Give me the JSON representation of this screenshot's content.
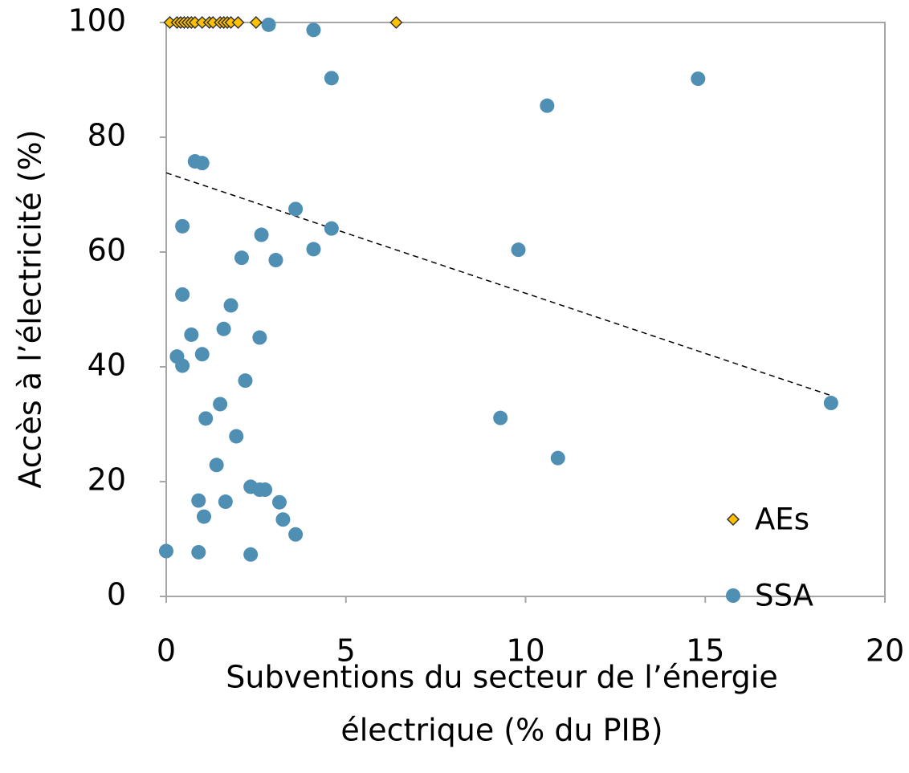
{
  "chart_data": {
    "type": "scatter",
    "xlabel": [
      "Subventions du secteur de l’énergie",
      "électrique (% du PIB)"
    ],
    "ylabel": "Accès à l’électricité (%)",
    "xlim": [
      0,
      20
    ],
    "xticks": [
      0,
      5,
      10,
      15,
      20
    ],
    "ylim": [
      0,
      100
    ],
    "yticks": [
      0,
      20,
      40,
      60,
      80,
      100
    ],
    "legend": "lower right",
    "series": [
      {
        "name": "AEs",
        "color": "#ffc000",
        "marker": "diamond",
        "x": [
          0.1,
          0.3,
          0.4,
          0.5,
          0.6,
          0.7,
          0.8,
          1.0,
          1.2,
          1.3,
          1.5,
          1.6,
          1.7,
          1.8,
          2.0,
          2.5,
          6.4
        ],
        "values": [
          100,
          100,
          100,
          100,
          100,
          100,
          100,
          100,
          100,
          100,
          100,
          100,
          100,
          100,
          100,
          100,
          100
        ]
      },
      {
        "name": "SSA",
        "color": "#4e8fb3",
        "marker": "circle",
        "x": [
          2.85,
          4.1,
          4.6,
          14.8,
          10.6,
          0.8,
          1.0,
          3.6,
          0.45,
          4.6,
          2.65,
          2.1,
          4.1,
          3.05,
          9.8,
          0.45,
          1.8,
          0.7,
          1.6,
          2.6,
          0.3,
          1.0,
          0.45,
          2.2,
          1.5,
          18.5,
          1.1,
          9.3,
          1.95,
          1.4,
          10.9,
          2.35,
          2.6,
          2.75,
          0.9,
          1.65,
          3.15,
          1.05,
          3.25,
          3.6,
          0.0,
          0.9,
          2.35
        ],
        "values": [
          99.6,
          98.7,
          90.3,
          90.2,
          85.5,
          75.8,
          75.5,
          67.5,
          64.5,
          64.1,
          63,
          59,
          60.5,
          58.6,
          60.4,
          52.6,
          50.7,
          45.6,
          46.6,
          45.1,
          41.8,
          42.2,
          40.2,
          37.6,
          33.5,
          33.7,
          31,
          31.1,
          27.9,
          22.9,
          24.1,
          19.1,
          18.6,
          18.6,
          16.7,
          16.5,
          16.4,
          13.9,
          13.4,
          10.8,
          7.9,
          7.7,
          7.3
        ]
      }
    ],
    "trendline": {
      "x": [
        0,
        18.5
      ],
      "values": [
        73.8,
        35
      ]
    }
  }
}
